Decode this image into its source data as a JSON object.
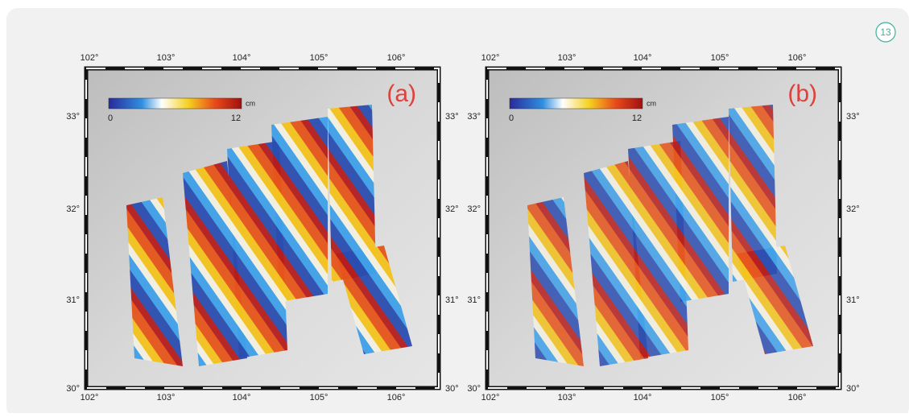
{
  "badge": "13",
  "panels": [
    {
      "label": "(a)",
      "colorbar": {
        "min": "0",
        "max": "12",
        "unit": "cm"
      }
    },
    {
      "label": "(b)",
      "colorbar": {
        "min": "0",
        "max": "12",
        "unit": "cm"
      }
    }
  ],
  "lon_ticks": [
    "102°",
    "103°",
    "104°",
    "105°",
    "106°"
  ],
  "lat_ticks": [
    "33°",
    "32°",
    "31°",
    "30°"
  ]
}
